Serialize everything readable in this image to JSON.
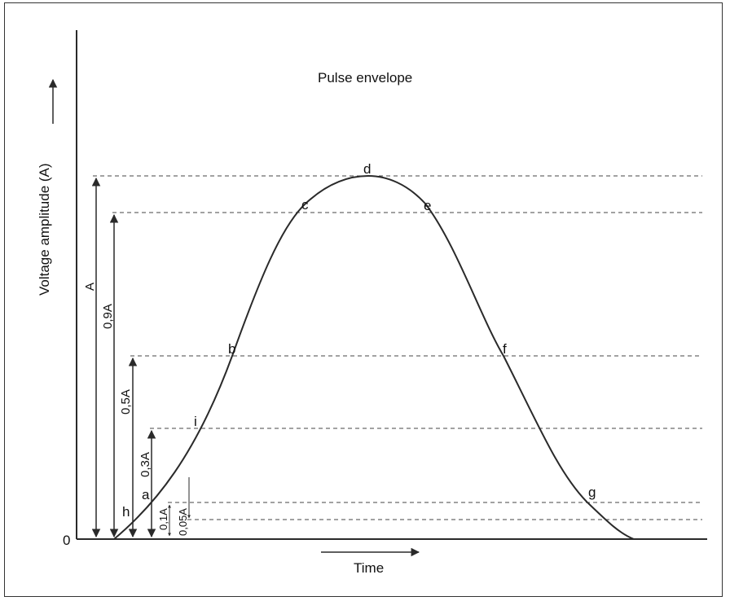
{
  "title": "Pulse envelope",
  "y_axis_label": "Voltage amplitude (A)",
  "x_axis_label": "Time",
  "origin_label": "0",
  "points": {
    "a": "a",
    "b": "b",
    "c": "c",
    "d": "d",
    "e": "e",
    "f": "f",
    "g": "g",
    "h": "h",
    "i": "i"
  },
  "levels": {
    "A": "A",
    "p90": "0,9A",
    "p50": "0,5A",
    "p30": "0,3A",
    "p10": "0,1A",
    "p05": "0,05A"
  },
  "colors": {
    "line": "#2a2a2a",
    "dash": "#444444",
    "text": "#111111"
  }
}
